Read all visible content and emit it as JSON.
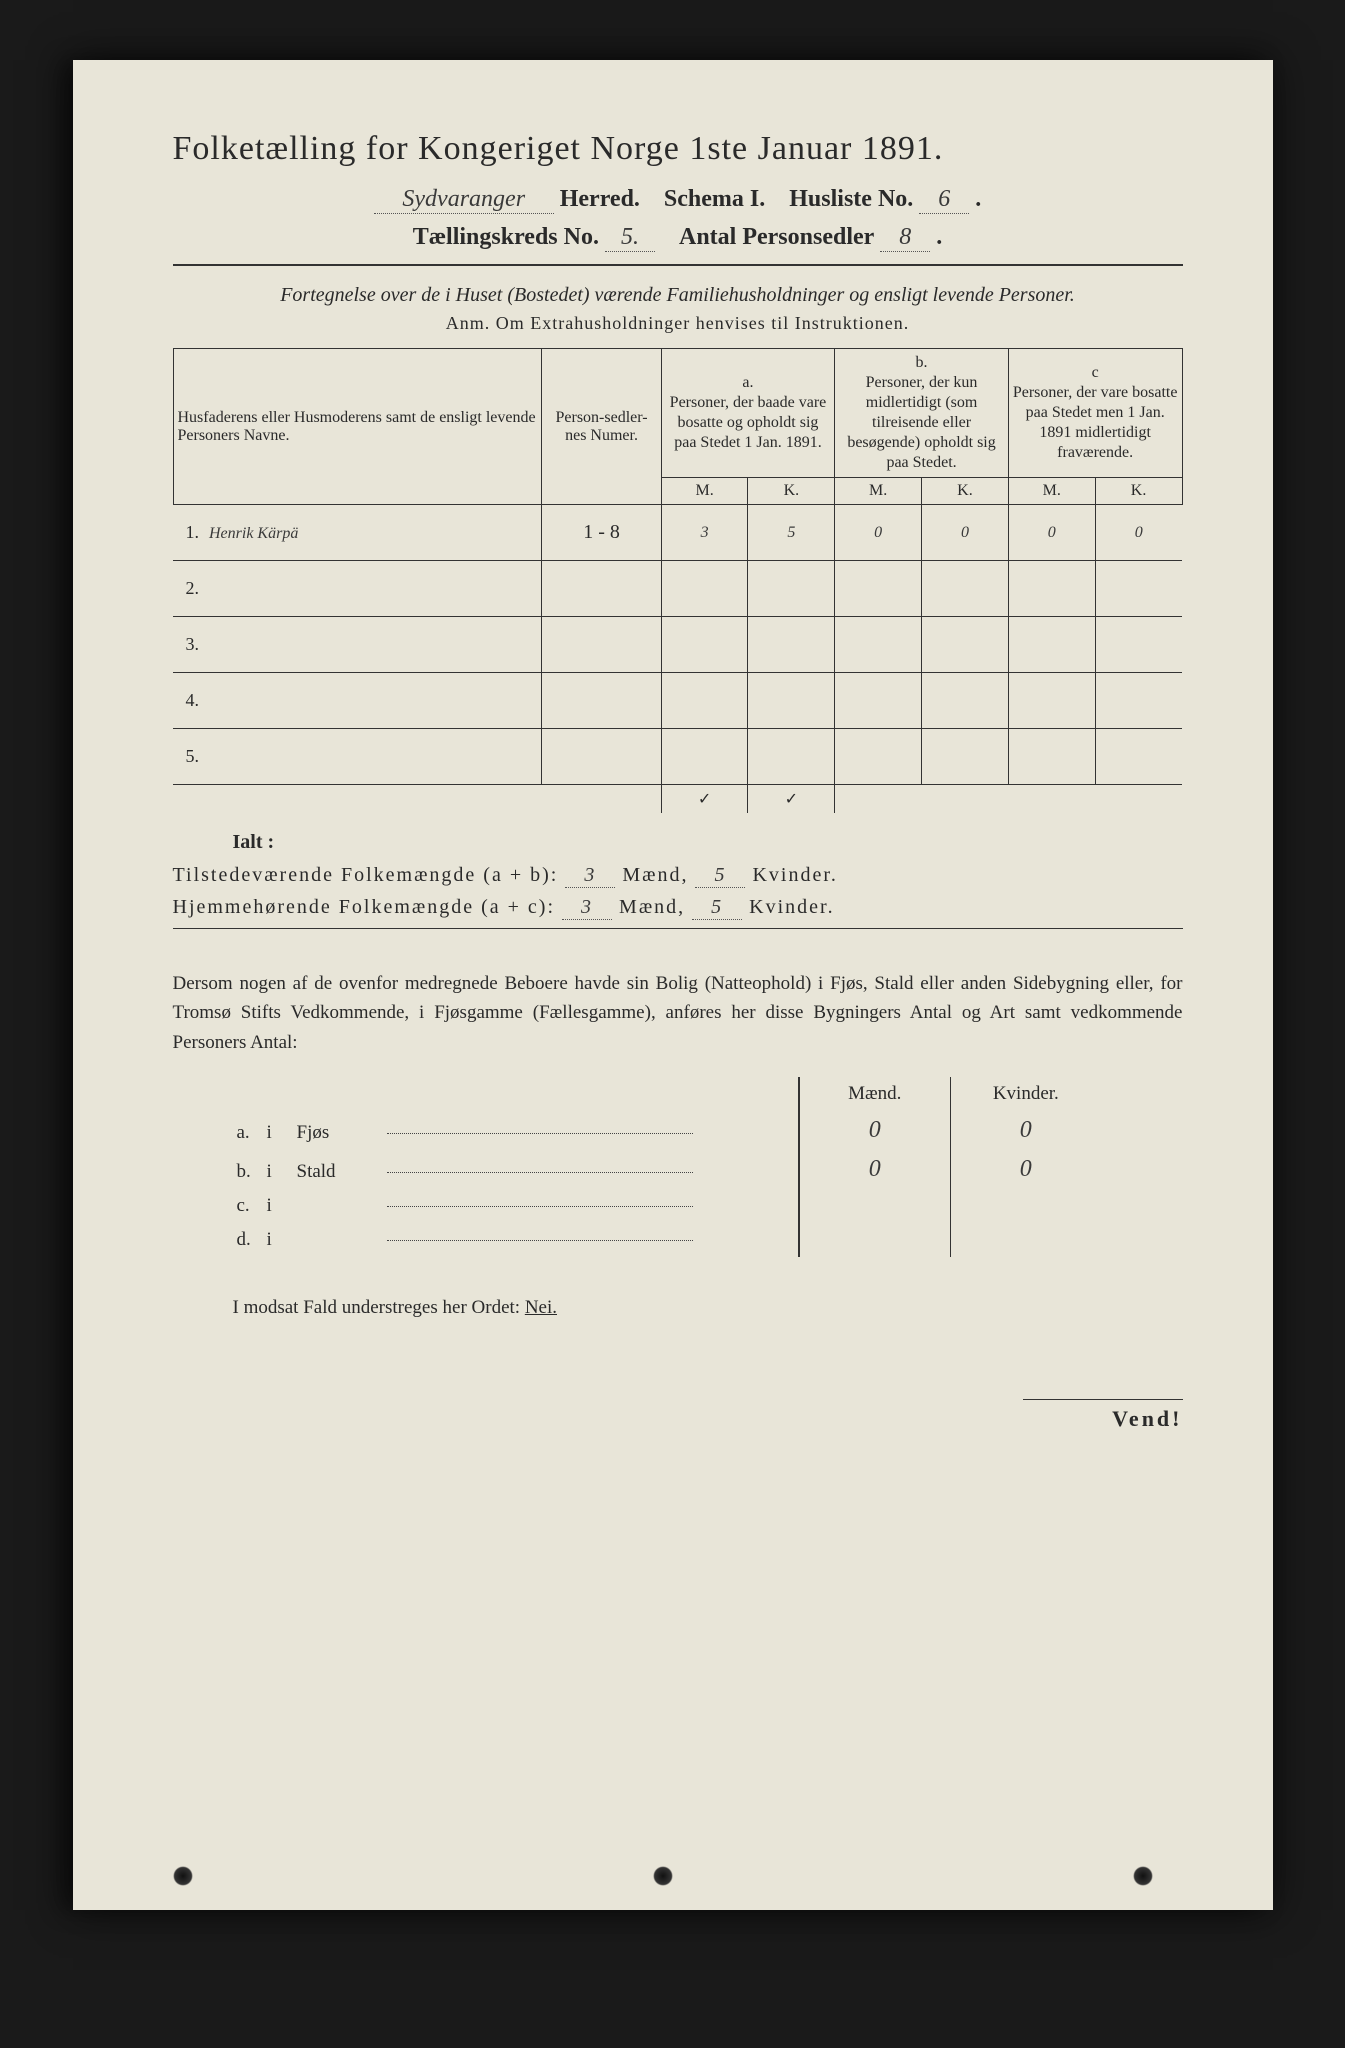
{
  "colors": {
    "paper": "#e8e5d8",
    "ink": "#2a2a2a",
    "background": "#1a1a1a"
  },
  "title": "Folketælling for Kongeriget Norge 1ste Januar 1891.",
  "header": {
    "herred_hand": "Sydvaranger",
    "herred_label": "Herred.",
    "schema_label": "Schema I.",
    "husliste_label": "Husliste No.",
    "husliste_no": "6",
    "kreds_label": "Tællingskreds No.",
    "kreds_no": "5.",
    "personsedler_label": "Antal Personsedler",
    "personsedler_no": "8"
  },
  "intro": "Fortegnelse over de i Huset (Bostedet) værende Familiehusholdninger og ensligt levende Personer.",
  "anm": "Anm.  Om Extrahusholdninger henvises til Instruktionen.",
  "table": {
    "col_names": "Husfaderens eller Husmoderens samt de ensligt levende Personers Navne.",
    "col_num": "Person-sedler-nes Numer.",
    "col_a_head": "a.",
    "col_a": "Personer, der baade vare bosatte og opholdt sig paa Stedet 1 Jan. 1891.",
    "col_b_head": "b.",
    "col_b": "Personer, der kun midlertidigt (som tilreisende eller besøgende) opholdt sig paa Stedet.",
    "col_c_head": "c",
    "col_c": "Personer, der vare bosatte paa Stedet men 1 Jan. 1891 midlertidigt fraværende.",
    "mk_m": "M.",
    "mk_k": "K.",
    "rows": [
      {
        "n": "1.",
        "name": "Henrik Kärpä",
        "num": "1 - 8",
        "a_m": "3",
        "a_k": "5",
        "b_m": "0",
        "b_k": "0",
        "c_m": "0",
        "c_k": "0"
      },
      {
        "n": "2.",
        "name": "",
        "num": "",
        "a_m": "",
        "a_k": "",
        "b_m": "",
        "b_k": "",
        "c_m": "",
        "c_k": ""
      },
      {
        "n": "3.",
        "name": "",
        "num": "",
        "a_m": "",
        "a_k": "",
        "b_m": "",
        "b_k": "",
        "c_m": "",
        "c_k": ""
      },
      {
        "n": "4.",
        "name": "",
        "num": "",
        "a_m": "",
        "a_k": "",
        "b_m": "",
        "b_k": "",
        "c_m": "",
        "c_k": ""
      },
      {
        "n": "5.",
        "name": "",
        "num": "",
        "a_m": "",
        "a_k": "",
        "b_m": "",
        "b_k": "",
        "c_m": "",
        "c_k": ""
      }
    ],
    "check_a_m": "✓",
    "check_a_k": "✓"
  },
  "ialt": "Ialt :",
  "sum1": {
    "label": "Tilstedeværende Folkemængde (a + b):",
    "m": "3",
    "m_label": "Mænd,",
    "k": "5",
    "k_label": "Kvinder."
  },
  "sum2": {
    "label": "Hjemmehørende Folkemængde (a + c):",
    "m": "3",
    "m_label": "Mænd,",
    "k": "5",
    "k_label": "Kvinder."
  },
  "para": "Dersom nogen af de ovenfor medregnede Beboere havde sin Bolig (Natteophold) i Fjøs, Stald eller anden Sidebygning eller, for Tromsø Stifts Vedkommende, i Fjøsgamme (Fællesgamme), anføres her disse Bygningers Antal og Art samt vedkommende Personers Antal:",
  "lower": {
    "head_m": "Mænd.",
    "head_k": "Kvinder.",
    "rows": [
      {
        "letter": "a.",
        "i": "i",
        "label": "Fjøs",
        "m": "0",
        "k": "0"
      },
      {
        "letter": "b.",
        "i": "i",
        "label": "Stald",
        "m": "0",
        "k": "0"
      },
      {
        "letter": "c.",
        "i": "i",
        "label": "",
        "m": "",
        "k": ""
      },
      {
        "letter": "d.",
        "i": "i",
        "label": "",
        "m": "",
        "k": ""
      }
    ]
  },
  "neg_line": "I modsat Fald understreges her Ordet:",
  "neg_word": "Nei.",
  "vend": "Vend!"
}
